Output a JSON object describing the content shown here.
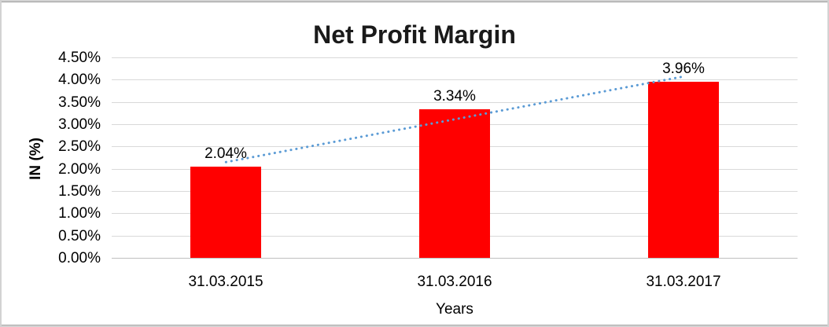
{
  "window": {
    "background": "#ffffff",
    "border_color": "#d2d2d2"
  },
  "chart_data": {
    "type": "bar",
    "title": "Net Profit Margin",
    "xlabel": "Years",
    "ylabel": "IN (%)",
    "categories": [
      "31.03.2015",
      "31.03.2016",
      "31.03.2017"
    ],
    "series": [
      {
        "name": "Net Profit Margin",
        "values": [
          2.04,
          3.34,
          3.96
        ],
        "data_labels": [
          "2.04%",
          "3.34%",
          "3.96%"
        ],
        "color": "#ff0000"
      }
    ],
    "ylim": [
      0,
      4.5
    ],
    "yticks": [
      {
        "value": 0.0,
        "label": "0.00%"
      },
      {
        "value": 0.5,
        "label": "0.50%"
      },
      {
        "value": 1.0,
        "label": "1.00%"
      },
      {
        "value": 1.5,
        "label": "1.50%"
      },
      {
        "value": 2.0,
        "label": "2.00%"
      },
      {
        "value": 2.5,
        "label": "2.50%"
      },
      {
        "value": 3.0,
        "label": "3.00%"
      },
      {
        "value": 3.5,
        "label": "3.50%"
      },
      {
        "value": 4.0,
        "label": "4.00%"
      },
      {
        "value": 4.5,
        "label": "4.50%"
      }
    ],
    "grid": true,
    "gridline_color": "#d9d9d9",
    "legend": "none",
    "trendline": {
      "type": "linear",
      "style": "dotted",
      "color": "#5b9bd5",
      "start_value": 2.15,
      "end_value": 4.07
    }
  }
}
